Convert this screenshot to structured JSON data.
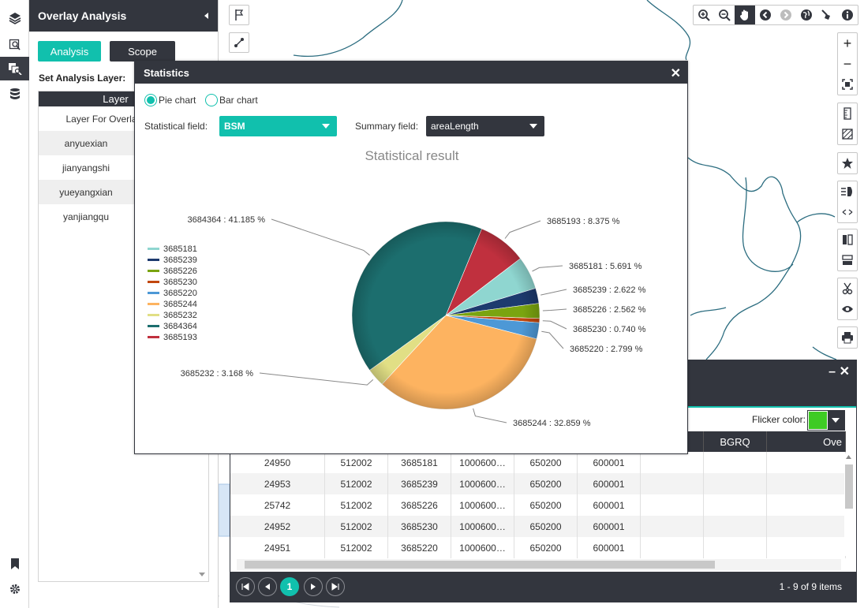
{
  "panel": {
    "title": "Overlay Analysis",
    "tab_analysis": "Analysis",
    "tab_scope": "Scope",
    "set_layer_label": "Set Analysis Layer:",
    "layer_header": "Layer",
    "layers": [
      "Layer For Overlay",
      "anyuexian",
      "jianyangshi",
      "yueyangxian",
      "yanjiangqu"
    ]
  },
  "statistics": {
    "title": "Statistics",
    "radio_pie": "Pie chart",
    "radio_bar": "Bar chart",
    "selected_chart": "pie",
    "statistical_field_label": "Statistical field:",
    "statistical_field_value": "BSM",
    "summary_field_label": "Summary field:",
    "summary_field_value": "areaLength"
  },
  "chart_data": {
    "type": "pie",
    "title": "Statistical result",
    "legend_placement": "left",
    "legend": [
      "3685181",
      "3685239",
      "3685226",
      "3685230",
      "3685220",
      "3685244",
      "3685232",
      "3684364",
      "3685193"
    ],
    "slices": [
      {
        "name": "3685193",
        "percent": 8.375,
        "label": "3685193 : 8.375 %",
        "color": "#c0303e"
      },
      {
        "name": "3685181",
        "percent": 5.691,
        "label": "3685181 : 5.691 %",
        "color": "#8fd6d0"
      },
      {
        "name": "3685239",
        "percent": 2.622,
        "label": "3685239 : 2.622 %",
        "color": "#1d3a6e"
      },
      {
        "name": "3685226",
        "percent": 2.562,
        "label": "3685226 : 2.562 %",
        "color": "#7aa410"
      },
      {
        "name": "3685230",
        "percent": 0.74,
        "label": "3685230 : 0.740 %",
        "color": "#c2470e"
      },
      {
        "name": "3685220",
        "percent": 2.799,
        "label": "3685220 : 2.799 %",
        "color": "#4d98d6"
      },
      {
        "name": "3685244",
        "percent": 32.859,
        "label": "3685244 : 32.859 %",
        "color": "#fdb360"
      },
      {
        "name": "3685232",
        "percent": 3.168,
        "label": "3685232 : 3.168 %",
        "color": "#e1df85"
      },
      {
        "name": "3684364",
        "percent": 41.185,
        "label": "3684364 : 41.185 %",
        "color": "#1c6e6e"
      }
    ]
  },
  "attribute_table": {
    "flicker_label": "Flicker color:",
    "flicker_color": "#3ecb24",
    "visible_headers": [
      "BGRQ",
      "Ove"
    ],
    "rows": [
      [
        "24950",
        "512002",
        "3685181",
        "1000600…",
        "650200",
        "600001",
        "",
        "",
        ""
      ],
      [
        "24953",
        "512002",
        "3685239",
        "1000600…",
        "650200",
        "600001",
        "",
        "",
        ""
      ],
      [
        "25742",
        "512002",
        "3685226",
        "1000600…",
        "650200",
        "600001",
        "",
        "",
        ""
      ],
      [
        "24952",
        "512002",
        "3685230",
        "1000600…",
        "650200",
        "600001",
        "",
        "",
        ""
      ],
      [
        "24951",
        "512002",
        "3685220",
        "1000600…",
        "650200",
        "600001",
        "",
        "",
        ""
      ]
    ],
    "current_page": "1",
    "page_info": "1 - 9 of 9 items"
  }
}
